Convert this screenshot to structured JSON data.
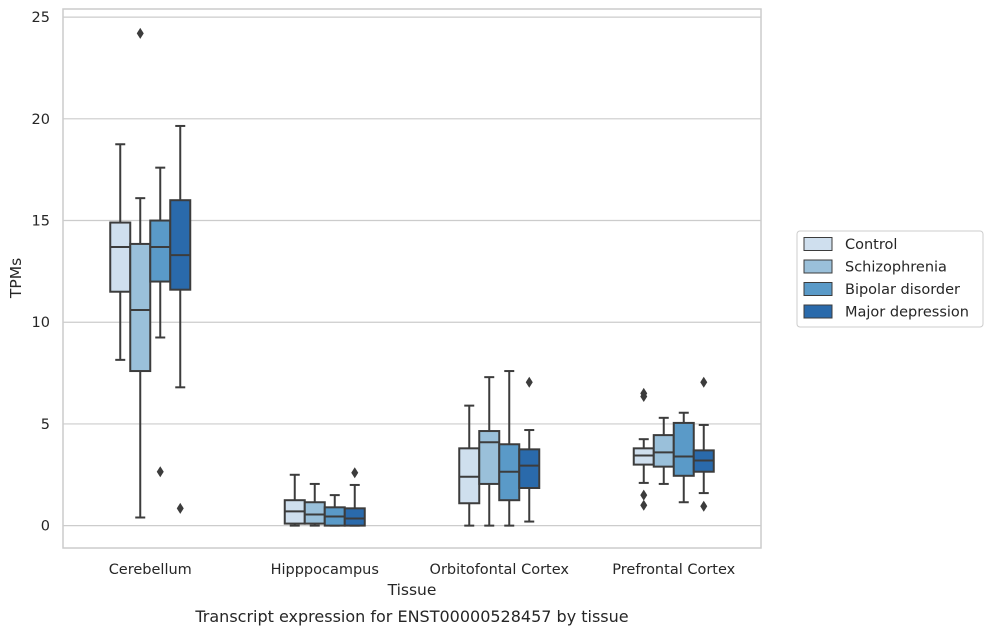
{
  "caption": "Transcript expression for ENST00000528457 by tissue",
  "chart_data": {
    "type": "box",
    "xlabel": "Tissue",
    "ylabel": "TPMs",
    "ylim": [
      -1.1,
      25.4
    ],
    "yticks": [
      0,
      5,
      10,
      15,
      20,
      25
    ],
    "grid": "horizontal",
    "legend_position": "right",
    "categories": [
      "Cerebellum",
      "Hipppocampus",
      "Orbitofontal Cortex",
      "Prefrontal Cortex"
    ],
    "series": [
      {
        "name": "Control",
        "color": "#cfdfee",
        "boxes": [
          {
            "q1": 11.5,
            "median": 13.7,
            "q3": 14.9,
            "whisker_low": 8.15,
            "whisker_high": 18.75,
            "outliers": []
          },
          {
            "q1": 0.1,
            "median": 0.7,
            "q3": 1.25,
            "whisker_low": 0.0,
            "whisker_high": 2.5,
            "outliers": []
          },
          {
            "q1": 1.1,
            "median": 2.4,
            "q3": 3.8,
            "whisker_low": 0.0,
            "whisker_high": 5.9,
            "outliers": []
          },
          {
            "q1": 3.0,
            "median": 3.45,
            "q3": 3.8,
            "whisker_low": 2.1,
            "whisker_high": 4.25,
            "outliers": [
              6.5,
              6.35,
              1.5,
              1.0
            ]
          }
        ]
      },
      {
        "name": "Schizophrenia",
        "color": "#9ac0da",
        "boxes": [
          {
            "q1": 7.6,
            "median": 10.6,
            "q3": 13.85,
            "whisker_low": 0.4,
            "whisker_high": 16.1,
            "outliers": [
              24.2
            ]
          },
          {
            "q1": 0.1,
            "median": 0.55,
            "q3": 1.15,
            "whisker_low": 0.0,
            "whisker_high": 2.05,
            "outliers": []
          },
          {
            "q1": 2.05,
            "median": 4.1,
            "q3": 4.65,
            "whisker_low": 0.0,
            "whisker_high": 7.3,
            "outliers": []
          },
          {
            "q1": 2.9,
            "median": 3.6,
            "q3": 4.45,
            "whisker_low": 2.05,
            "whisker_high": 5.3,
            "outliers": []
          }
        ]
      },
      {
        "name": "Bipolar disorder",
        "color": "#5a9ac8",
        "boxes": [
          {
            "q1": 12.0,
            "median": 13.7,
            "q3": 15.0,
            "whisker_low": 9.25,
            "whisker_high": 17.6,
            "outliers": [
              2.65
            ]
          },
          {
            "q1": 0.0,
            "median": 0.45,
            "q3": 0.9,
            "whisker_low": 0.0,
            "whisker_high": 1.5,
            "outliers": []
          },
          {
            "q1": 1.25,
            "median": 2.65,
            "q3": 4.0,
            "whisker_low": 0.0,
            "whisker_high": 7.6,
            "outliers": []
          },
          {
            "q1": 2.45,
            "median": 3.4,
            "q3": 5.05,
            "whisker_low": 1.15,
            "whisker_high": 5.55,
            "outliers": []
          }
        ]
      },
      {
        "name": "Major depression",
        "color": "#2a6aab",
        "boxes": [
          {
            "q1": 11.6,
            "median": 13.3,
            "q3": 16.0,
            "whisker_low": 6.8,
            "whisker_high": 19.65,
            "outliers": [
              0.85
            ]
          },
          {
            "q1": 0.0,
            "median": 0.35,
            "q3": 0.85,
            "whisker_low": 0.0,
            "whisker_high": 2.0,
            "outliers": [
              2.6
            ]
          },
          {
            "q1": 1.85,
            "median": 2.95,
            "q3": 3.75,
            "whisker_low": 0.2,
            "whisker_high": 4.7,
            "outliers": [
              7.05
            ]
          },
          {
            "q1": 2.65,
            "median": 3.2,
            "q3": 3.7,
            "whisker_low": 1.6,
            "whisker_high": 4.95,
            "outliers": [
              7.05,
              0.95
            ]
          }
        ]
      }
    ]
  }
}
